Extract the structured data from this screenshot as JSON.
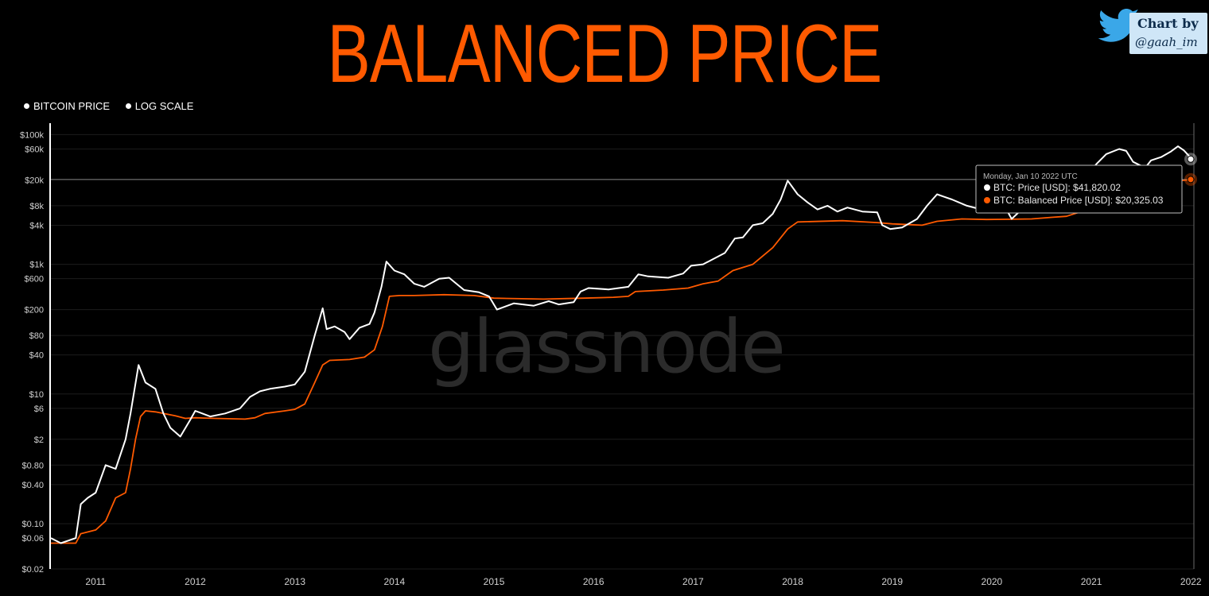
{
  "page": {
    "title": "BALANCED PRICE",
    "credit": {
      "label": "Chart by",
      "handle": "@gaah_im",
      "icon": "twitter-bird-icon"
    },
    "legend": [
      {
        "label": "BITCOIN PRICE"
      },
      {
        "label": "LOG SCALE"
      }
    ],
    "watermark": "glassnode"
  },
  "colors": {
    "background": "#000000",
    "title": "#ff5a00",
    "price_line": "#ffffff",
    "balanced_line": "#ff5a00",
    "grid": "#1c1c1c"
  },
  "tooltip": {
    "date": "Monday, Jan 10 2022 UTC",
    "lines": [
      {
        "text": "BTC: Price [USD]: $41,820.02",
        "color": "#ffffff"
      },
      {
        "text": "BTC: Balanced Price [USD]: $20,325.03",
        "color": "#ff5a00"
      }
    ]
  },
  "chart_data": {
    "type": "line",
    "y_scale": "log",
    "ylim": [
      0.02,
      150000
    ],
    "xlim": [
      2010.55,
      2022.03
    ],
    "grid": true,
    "y_tick_labels": [
      {
        "v": 100000,
        "label": "$100k"
      },
      {
        "v": 60000,
        "label": "$60k"
      },
      {
        "v": 20000,
        "label": "$20k"
      },
      {
        "v": 8000,
        "label": "$8k"
      },
      {
        "v": 4000,
        "label": "$4k"
      },
      {
        "v": 1000,
        "label": "$1k"
      },
      {
        "v": 600,
        "label": "$600"
      },
      {
        "v": 200,
        "label": "$200"
      },
      {
        "v": 80,
        "label": "$80"
      },
      {
        "v": 40,
        "label": "$40"
      },
      {
        "v": 10,
        "label": "$10"
      },
      {
        "v": 6,
        "label": "$6"
      },
      {
        "v": 2,
        "label": "$2"
      },
      {
        "v": 0.8,
        "label": "$0.80"
      },
      {
        "v": 0.4,
        "label": "$0.40"
      },
      {
        "v": 0.1,
        "label": "$0.10"
      },
      {
        "v": 0.06,
        "label": "$0.06"
      },
      {
        "v": 0.02,
        "label": "$0.02"
      }
    ],
    "x_tick_labels": [
      {
        "v": 2011,
        "label": "2011"
      },
      {
        "v": 2012,
        "label": "2012"
      },
      {
        "v": 2013,
        "label": "2013"
      },
      {
        "v": 2014,
        "label": "2014"
      },
      {
        "v": 2015,
        "label": "2015"
      },
      {
        "v": 2016,
        "label": "2016"
      },
      {
        "v": 2017,
        "label": "2017"
      },
      {
        "v": 2018,
        "label": "2018"
      },
      {
        "v": 2019,
        "label": "2019"
      },
      {
        "v": 2020,
        "label": "2020"
      },
      {
        "v": 2021,
        "label": "2021"
      },
      {
        "v": 2022,
        "label": "2022"
      }
    ],
    "series": [
      {
        "name": "BTC: Price [USD]",
        "color": "#ffffff",
        "points": [
          [
            2010.55,
            0.06
          ],
          [
            2010.65,
            0.05
          ],
          [
            2010.8,
            0.06
          ],
          [
            2010.85,
            0.2
          ],
          [
            2010.92,
            0.25
          ],
          [
            2011.0,
            0.3
          ],
          [
            2011.1,
            0.8
          ],
          [
            2011.2,
            0.7
          ],
          [
            2011.3,
            2.0
          ],
          [
            2011.35,
            5
          ],
          [
            2011.43,
            28
          ],
          [
            2011.5,
            15
          ],
          [
            2011.6,
            12
          ],
          [
            2011.68,
            5
          ],
          [
            2011.75,
            3
          ],
          [
            2011.85,
            2.2
          ],
          [
            2011.95,
            4
          ],
          [
            2012.0,
            5.5
          ],
          [
            2012.15,
            4.5
          ],
          [
            2012.3,
            5
          ],
          [
            2012.45,
            6
          ],
          [
            2012.55,
            9
          ],
          [
            2012.65,
            11
          ],
          [
            2012.75,
            12
          ],
          [
            2012.9,
            13
          ],
          [
            2013.0,
            14
          ],
          [
            2013.1,
            22
          ],
          [
            2013.2,
            80
          ],
          [
            2013.28,
            210
          ],
          [
            2013.32,
            100
          ],
          [
            2013.4,
            110
          ],
          [
            2013.5,
            90
          ],
          [
            2013.55,
            70
          ],
          [
            2013.65,
            105
          ],
          [
            2013.75,
            120
          ],
          [
            2013.8,
            180
          ],
          [
            2013.87,
            450
          ],
          [
            2013.92,
            1100
          ],
          [
            2014.0,
            800
          ],
          [
            2014.1,
            700
          ],
          [
            2014.2,
            500
          ],
          [
            2014.3,
            450
          ],
          [
            2014.45,
            600
          ],
          [
            2014.55,
            620
          ],
          [
            2014.7,
            400
          ],
          [
            2014.85,
            370
          ],
          [
            2014.95,
            320
          ],
          [
            2015.03,
            200
          ],
          [
            2015.2,
            250
          ],
          [
            2015.4,
            230
          ],
          [
            2015.55,
            270
          ],
          [
            2015.65,
            240
          ],
          [
            2015.8,
            260
          ],
          [
            2015.87,
            380
          ],
          [
            2015.95,
            430
          ],
          [
            2016.15,
            410
          ],
          [
            2016.35,
            450
          ],
          [
            2016.45,
            700
          ],
          [
            2016.55,
            650
          ],
          [
            2016.75,
            620
          ],
          [
            2016.9,
            720
          ],
          [
            2016.98,
            950
          ],
          [
            2017.1,
            1000
          ],
          [
            2017.2,
            1200
          ],
          [
            2017.32,
            1500
          ],
          [
            2017.42,
            2500
          ],
          [
            2017.5,
            2600
          ],
          [
            2017.6,
            4000
          ],
          [
            2017.7,
            4300
          ],
          [
            2017.8,
            6000
          ],
          [
            2017.88,
            10000
          ],
          [
            2017.95,
            19500
          ],
          [
            2018.05,
            12000
          ],
          [
            2018.15,
            9000
          ],
          [
            2018.25,
            7000
          ],
          [
            2018.35,
            8000
          ],
          [
            2018.45,
            6500
          ],
          [
            2018.55,
            7500
          ],
          [
            2018.7,
            6500
          ],
          [
            2018.85,
            6300
          ],
          [
            2018.9,
            4000
          ],
          [
            2018.98,
            3500
          ],
          [
            2019.1,
            3700
          ],
          [
            2019.25,
            5000
          ],
          [
            2019.35,
            8000
          ],
          [
            2019.45,
            12000
          ],
          [
            2019.52,
            11000
          ],
          [
            2019.6,
            10000
          ],
          [
            2019.75,
            8000
          ],
          [
            2019.85,
            7300
          ],
          [
            2019.95,
            7200
          ],
          [
            2020.1,
            9500
          ],
          [
            2020.2,
            5000
          ],
          [
            2020.3,
            7000
          ],
          [
            2020.45,
            9500
          ],
          [
            2020.55,
            9300
          ],
          [
            2020.65,
            11500
          ],
          [
            2020.75,
            11000
          ],
          [
            2020.85,
            15000
          ],
          [
            2020.95,
            23000
          ],
          [
            2021.05,
            35000
          ],
          [
            2021.15,
            50000
          ],
          [
            2021.28,
            60000
          ],
          [
            2021.35,
            56000
          ],
          [
            2021.42,
            38000
          ],
          [
            2021.5,
            33000
          ],
          [
            2021.55,
            32000
          ],
          [
            2021.6,
            40000
          ],
          [
            2021.7,
            45000
          ],
          [
            2021.8,
            55000
          ],
          [
            2021.87,
            66000
          ],
          [
            2021.93,
            57000
          ],
          [
            2021.98,
            47000
          ],
          [
            2022.03,
            41820
          ]
        ]
      },
      {
        "name": "BTC: Balanced Price [USD]",
        "color": "#ff5a00",
        "points": [
          [
            2010.55,
            0.05
          ],
          [
            2010.8,
            0.05
          ],
          [
            2010.85,
            0.07
          ],
          [
            2011.0,
            0.08
          ],
          [
            2011.1,
            0.11
          ],
          [
            2011.2,
            0.25
          ],
          [
            2011.3,
            0.3
          ],
          [
            2011.35,
            0.7
          ],
          [
            2011.4,
            2.0
          ],
          [
            2011.45,
            4.5
          ],
          [
            2011.5,
            5.5
          ],
          [
            2011.6,
            5.3
          ],
          [
            2011.8,
            4.6
          ],
          [
            2011.9,
            4.2
          ],
          [
            2012.0,
            4.3
          ],
          [
            2012.2,
            4.2
          ],
          [
            2012.5,
            4.1
          ],
          [
            2012.6,
            4.3
          ],
          [
            2012.7,
            5.0
          ],
          [
            2012.9,
            5.5
          ],
          [
            2013.0,
            5.8
          ],
          [
            2013.1,
            7
          ],
          [
            2013.2,
            15
          ],
          [
            2013.28,
            28
          ],
          [
            2013.35,
            33
          ],
          [
            2013.55,
            34
          ],
          [
            2013.7,
            37
          ],
          [
            2013.8,
            48
          ],
          [
            2013.88,
            110
          ],
          [
            2013.95,
            320
          ],
          [
            2014.05,
            330
          ],
          [
            2014.2,
            330
          ],
          [
            2014.5,
            340
          ],
          [
            2014.8,
            330
          ],
          [
            2015.0,
            300
          ],
          [
            2015.5,
            290
          ],
          [
            2015.9,
            300
          ],
          [
            2016.2,
            310
          ],
          [
            2016.35,
            320
          ],
          [
            2016.42,
            380
          ],
          [
            2016.7,
            400
          ],
          [
            2016.95,
            430
          ],
          [
            2017.1,
            500
          ],
          [
            2017.25,
            550
          ],
          [
            2017.4,
            800
          ],
          [
            2017.6,
            1000
          ],
          [
            2017.8,
            1800
          ],
          [
            2017.9,
            2800
          ],
          [
            2017.95,
            3500
          ],
          [
            2018.05,
            4500
          ],
          [
            2018.5,
            4700
          ],
          [
            2018.85,
            4400
          ],
          [
            2019.0,
            4200
          ],
          [
            2019.3,
            4000
          ],
          [
            2019.45,
            4600
          ],
          [
            2019.7,
            5000
          ],
          [
            2019.95,
            4900
          ],
          [
            2020.2,
            4950
          ],
          [
            2020.4,
            5000
          ],
          [
            2020.6,
            5300
          ],
          [
            2020.75,
            5500
          ],
          [
            2020.9,
            6500
          ],
          [
            2021.0,
            9000
          ],
          [
            2021.1,
            13000
          ],
          [
            2021.3,
            16000
          ],
          [
            2021.55,
            17000
          ],
          [
            2021.8,
            19000
          ],
          [
            2022.03,
            20325
          ]
        ]
      }
    ]
  }
}
